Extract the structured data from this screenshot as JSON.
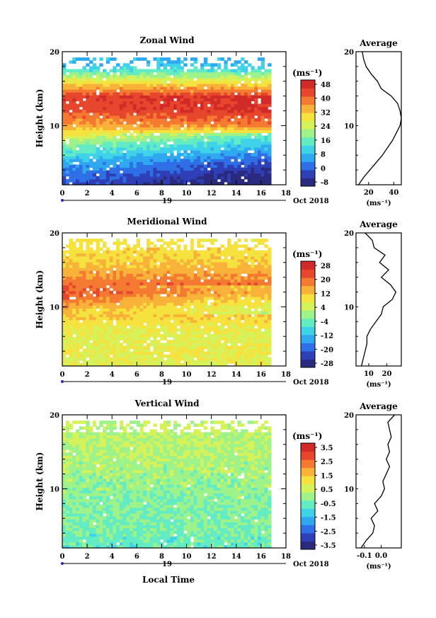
{
  "panels": [
    {
      "title": "Zonal Wind",
      "ylabel": "Height (km)",
      "xticks": [
        "0",
        "2",
        "4",
        "6",
        "8",
        "10",
        "12",
        "14",
        "16",
        "18"
      ],
      "yticks": [
        "10",
        "20"
      ],
      "day_label": "19",
      "date_label": "Oct 2018",
      "unit": "(ms⁻¹)",
      "colorbar_ticks": [
        "48",
        "40",
        "32",
        "24",
        "16",
        "8",
        "0",
        "-8"
      ],
      "avg_title": "Average",
      "avg_xticks": [
        "20",
        "40"
      ],
      "avg_yticks": [
        "10",
        "20"
      ],
      "avg_unit": "(ms⁻¹)"
    },
    {
      "title": "Meridional Wind",
      "ylabel": "Height (km)",
      "xticks": [
        "0",
        "2",
        "4",
        "6",
        "8",
        "10",
        "12",
        "14",
        "16",
        "18"
      ],
      "yticks": [
        "10",
        "20"
      ],
      "day_label": "19",
      "date_label": "Oct 2018",
      "unit": "(ms⁻¹)",
      "colorbar_ticks": [
        "28",
        "20",
        "12",
        "4",
        "-4",
        "-12",
        "-20",
        "-28"
      ],
      "avg_title": "Average",
      "avg_xticks": [
        "10",
        "20"
      ],
      "avg_yticks": [
        "10",
        "20"
      ],
      "avg_unit": "(ms⁻¹)"
    },
    {
      "title": "Vertical Wind",
      "ylabel": "Height (km)",
      "xticks": [
        "0",
        "2",
        "4",
        "6",
        "8",
        "10",
        "12",
        "14",
        "16",
        "18"
      ],
      "yticks": [
        "10",
        "20"
      ],
      "day_label": "19",
      "date_label": "Oct 2018",
      "unit": "(ms⁻¹)",
      "colorbar_ticks": [
        "3.5",
        "2.5",
        "1.5",
        "0.5",
        "-0.5",
        "-1.5",
        "-2.5",
        "-3.5"
      ],
      "avg_title": "Average",
      "avg_xticks": [
        "-0.1",
        "0.0"
      ],
      "avg_yticks": [
        "10",
        "20"
      ],
      "avg_unit": "(ms⁻¹)"
    }
  ],
  "xlabel_bottom": "Local Time",
  "colors": {
    "palette": [
      "#2a2a7e",
      "#2f3fb6",
      "#2f6fe6",
      "#2fa8f0",
      "#3fd2e8",
      "#63ecc4",
      "#9ef28a",
      "#d6f25a",
      "#f6e23e",
      "#f8b23a",
      "#f47a32",
      "#e6462c",
      "#d22a28"
    ]
  },
  "chart_data": [
    {
      "type": "heatmap",
      "title": "Zonal Wind",
      "ylabel": "Height (km)",
      "x_range": [
        0,
        18
      ],
      "y_range": [
        2,
        20
      ],
      "data_time_range": [
        0,
        16.8
      ],
      "color_range": [
        -8,
        52
      ],
      "profile": [
        [
          2,
          1
        ],
        [
          4,
          6
        ],
        [
          6,
          14
        ],
        [
          8,
          24
        ],
        [
          10,
          36
        ],
        [
          12,
          44
        ],
        [
          14,
          46
        ],
        [
          16,
          30
        ],
        [
          18,
          12
        ],
        [
          20,
          6
        ]
      ],
      "average_profile": {
        "title": "Average",
        "x_range": [
          10,
          46
        ],
        "height": [
          2,
          3,
          4,
          5,
          6,
          7,
          8,
          9,
          10,
          11,
          12,
          13,
          14,
          15,
          16,
          17,
          18,
          19,
          20
        ],
        "value": [
          12,
          16,
          21,
          26,
          31,
          35,
          39,
          42,
          45,
          46,
          45,
          43,
          38,
          30,
          27,
          22,
          18,
          16,
          15
        ]
      }
    },
    {
      "type": "heatmap",
      "title": "Meridional Wind",
      "ylabel": "Height (km)",
      "x_range": [
        0,
        18
      ],
      "y_range": [
        2,
        20
      ],
      "data_time_range": [
        0,
        16.8
      ],
      "color_range": [
        -32,
        32
      ],
      "profile": [
        [
          2,
          6
        ],
        [
          4,
          8
        ],
        [
          6,
          6
        ],
        [
          8,
          10
        ],
        [
          10,
          16
        ],
        [
          12,
          24
        ],
        [
          14,
          18
        ],
        [
          16,
          12
        ],
        [
          18,
          10
        ],
        [
          20,
          8
        ]
      ],
      "average_profile": {
        "title": "Average",
        "x_range": [
          3,
          28
        ],
        "height": [
          2,
          3,
          4,
          5,
          6,
          7,
          8,
          9,
          10,
          11,
          12,
          13,
          14,
          15,
          16,
          17,
          18,
          19,
          20
        ],
        "value": [
          6,
          7,
          8,
          9,
          9,
          11,
          14,
          17,
          18,
          23,
          25,
          22,
          17,
          21,
          16,
          19,
          13,
          12,
          8
        ]
      }
    },
    {
      "type": "heatmap",
      "title": "Vertical Wind",
      "ylabel": "Height (km)",
      "x_label": "Local Time",
      "x_range": [
        0,
        18
      ],
      "y_range": [
        2,
        20
      ],
      "data_time_range": [
        0,
        16.8
      ],
      "color_range": [
        -4,
        4
      ],
      "profile": [
        [
          2,
          -0.6
        ],
        [
          6,
          -0.3
        ],
        [
          10,
          -0.1
        ],
        [
          14,
          0.2
        ],
        [
          18,
          0.4
        ],
        [
          20,
          0.3
        ]
      ],
      "average_profile": {
        "title": "Average",
        "x_range": [
          -0.15,
          0.12
        ],
        "height": [
          2,
          3,
          4,
          5,
          6,
          7,
          8,
          9,
          10,
          11,
          12,
          13,
          14,
          15,
          16,
          17,
          18,
          19,
          20
        ],
        "value": [
          -0.12,
          -0.09,
          -0.05,
          -0.04,
          -0.06,
          -0.02,
          -0.04,
          0.0,
          0.02,
          0.01,
          0.03,
          0.05,
          0.03,
          0.05,
          0.04,
          0.06,
          0.05,
          0.04,
          0.08
        ]
      }
    }
  ]
}
